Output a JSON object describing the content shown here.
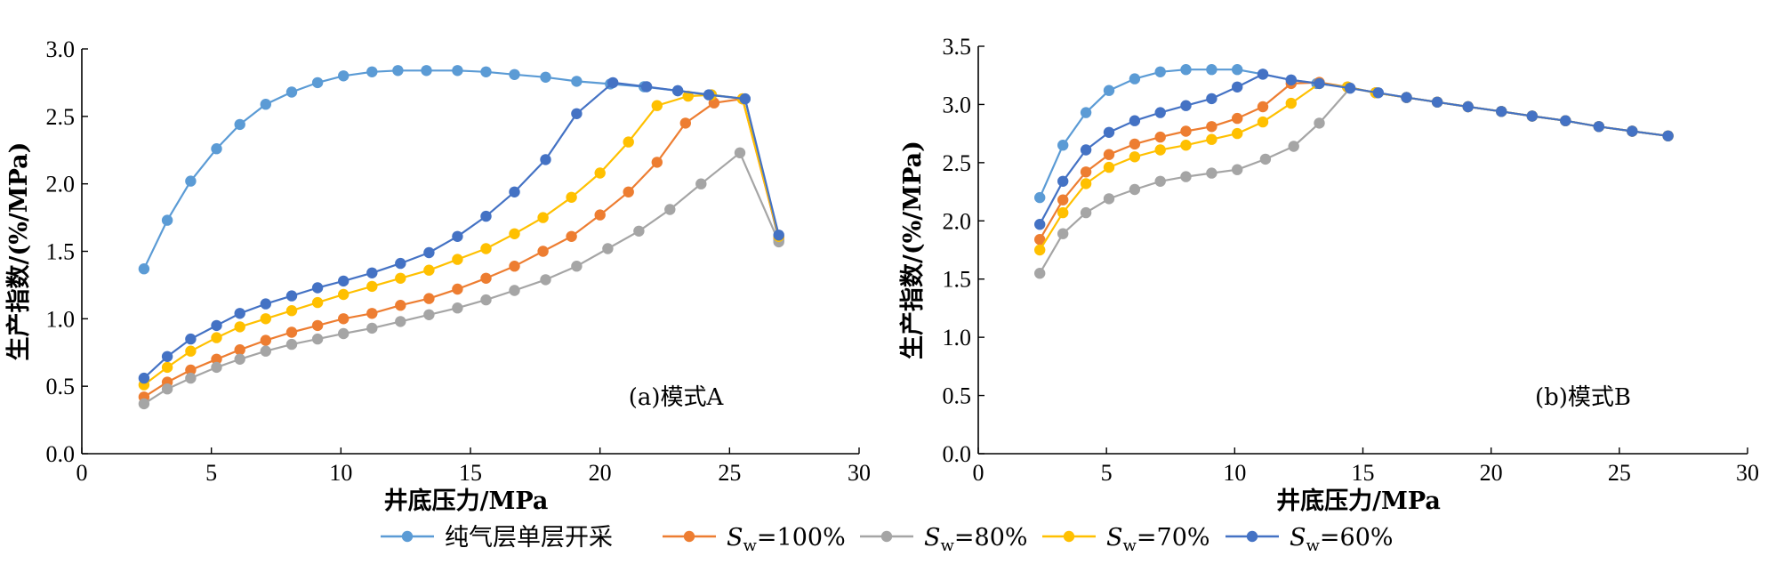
{
  "chart_data": [
    {
      "type": "line",
      "panel_label": "(a)模式A",
      "xlabel": "井底压力/MPa",
      "ylabel": "生产指数/(%/MPa)",
      "xlim": [
        0,
        30
      ],
      "ylim": [
        0,
        3.0
      ],
      "xticks": [
        "0",
        "5",
        "10",
        "15",
        "20",
        "25",
        "30"
      ],
      "yticks": [
        "0.0",
        "0.5",
        "1.0",
        "1.5",
        "2.0",
        "2.5",
        "3.0"
      ],
      "series": [
        {
          "name": "纯气层单层开采",
          "color": "#5b9bd5",
          "x": [
            2.4,
            3.3,
            4.2,
            5.2,
            6.1,
            7.1,
            8.1,
            9.1,
            10.1,
            11.2,
            12.2,
            13.3,
            14.5,
            15.6,
            16.7,
            17.9,
            19.1,
            20.4,
            21.7,
            23.0,
            24.3,
            25.6,
            26.9
          ],
          "y": [
            1.37,
            1.73,
            2.02,
            2.26,
            2.44,
            2.59,
            2.68,
            2.75,
            2.8,
            2.83,
            2.84,
            2.84,
            2.84,
            2.83,
            2.81,
            2.79,
            2.76,
            2.74,
            2.72,
            2.69,
            2.66,
            2.63,
            1.58
          ]
        },
        {
          "name": "Sw=100%",
          "color": "#ed7d31",
          "x": [
            2.4,
            3.3,
            4.2,
            5.2,
            6.1,
            7.1,
            8.1,
            9.1,
            10.1,
            11.2,
            12.3,
            13.4,
            14.5,
            15.6,
            16.7,
            17.8,
            18.9,
            20.0,
            21.1,
            22.2,
            23.3,
            24.4,
            25.5,
            26.9
          ],
          "y": [
            0.42,
            0.53,
            0.62,
            0.7,
            0.77,
            0.84,
            0.9,
            0.95,
            1.0,
            1.04,
            1.1,
            1.15,
            1.22,
            1.3,
            1.39,
            1.5,
            1.61,
            1.77,
            1.94,
            2.16,
            2.45,
            2.6,
            2.63,
            1.6
          ]
        },
        {
          "name": "Sw=80%",
          "color": "#a5a5a5",
          "x": [
            2.4,
            3.3,
            4.2,
            5.2,
            6.1,
            7.1,
            8.1,
            9.1,
            10.1,
            11.2,
            12.3,
            13.4,
            14.5,
            15.6,
            16.7,
            17.9,
            19.1,
            20.3,
            21.5,
            22.7,
            23.9,
            25.4,
            26.9
          ],
          "y": [
            0.37,
            0.48,
            0.56,
            0.64,
            0.7,
            0.76,
            0.81,
            0.85,
            0.89,
            0.93,
            0.98,
            1.03,
            1.08,
            1.14,
            1.21,
            1.29,
            1.39,
            1.52,
            1.65,
            1.81,
            2.0,
            2.23,
            1.57
          ]
        },
        {
          "name": "Sw=70%",
          "color": "#ffc000",
          "x": [
            2.4,
            3.3,
            4.2,
            5.2,
            6.1,
            7.1,
            8.1,
            9.1,
            10.1,
            11.2,
            12.3,
            13.4,
            14.5,
            15.6,
            16.7,
            17.8,
            18.9,
            20.0,
            21.1,
            22.2,
            23.4,
            24.3,
            25.5,
            26.9
          ],
          "y": [
            0.51,
            0.64,
            0.76,
            0.86,
            0.94,
            1.0,
            1.06,
            1.12,
            1.18,
            1.24,
            1.3,
            1.36,
            1.44,
            1.52,
            1.63,
            1.75,
            1.9,
            2.08,
            2.31,
            2.58,
            2.65,
            2.66,
            2.63,
            1.61
          ]
        },
        {
          "name": "Sw=60%",
          "color": "#4472c4",
          "x": [
            2.4,
            3.3,
            4.2,
            5.2,
            6.1,
            7.1,
            8.1,
            9.1,
            10.1,
            11.2,
            12.3,
            13.4,
            14.5,
            15.6,
            16.7,
            17.9,
            19.1,
            20.5,
            21.8,
            23.0,
            24.2,
            25.6,
            26.9
          ],
          "y": [
            0.56,
            0.72,
            0.85,
            0.95,
            1.04,
            1.11,
            1.17,
            1.23,
            1.28,
            1.34,
            1.41,
            1.49,
            1.61,
            1.76,
            1.94,
            2.18,
            2.52,
            2.75,
            2.72,
            2.69,
            2.66,
            2.63,
            1.62
          ]
        }
      ]
    },
    {
      "type": "line",
      "panel_label": "(b)模式B",
      "xlabel": "井底压力/MPa",
      "ylabel": "生产指数/(%/MPa)",
      "xlim": [
        0,
        30
      ],
      "ylim": [
        0,
        3.5
      ],
      "xticks": [
        "0",
        "5",
        "10",
        "15",
        "20",
        "25",
        "30"
      ],
      "yticks": [
        "0.0",
        "0.5",
        "1.0",
        "1.5",
        "2.0",
        "2.5",
        "3.0",
        "3.5"
      ],
      "series": [
        {
          "name": "纯气层单层开采",
          "color": "#5b9bd5",
          "x": [
            2.4,
            3.3,
            4.2,
            5.1,
            6.1,
            7.1,
            8.1,
            9.1,
            10.1,
            11.1,
            12.2,
            13.2,
            14.4,
            15.5,
            16.7,
            17.9,
            19.1,
            20.4,
            21.6,
            22.9,
            24.2,
            25.5,
            26.9
          ],
          "y": [
            2.2,
            2.65,
            2.93,
            3.12,
            3.22,
            3.28,
            3.3,
            3.3,
            3.3,
            3.26,
            3.21,
            3.18,
            3.15,
            3.1,
            3.06,
            3.02,
            2.98,
            2.94,
            2.9,
            2.86,
            2.81,
            2.77,
            2.73
          ]
        },
        {
          "name": "Sw=100%",
          "color": "#ed7d31",
          "x": [
            2.4,
            3.3,
            4.2,
            5.1,
            6.1,
            7.1,
            8.1,
            9.1,
            10.1,
            11.1,
            12.2,
            13.3,
            14.4,
            15.5,
            16.7,
            17.9,
            19.1,
            20.4,
            21.6,
            22.9,
            24.2,
            25.5,
            26.9
          ],
          "y": [
            1.84,
            2.18,
            2.42,
            2.57,
            2.66,
            2.72,
            2.77,
            2.81,
            2.88,
            2.98,
            3.18,
            3.19,
            3.15,
            3.1,
            3.06,
            3.02,
            2.98,
            2.94,
            2.9,
            2.86,
            2.81,
            2.77,
            2.73
          ]
        },
        {
          "name": "Sw=80%",
          "color": "#a5a5a5",
          "x": [
            2.4,
            3.3,
            4.2,
            5.1,
            6.1,
            7.1,
            8.1,
            9.1,
            10.1,
            11.2,
            12.3,
            13.3,
            14.5,
            15.5,
            16.7,
            17.9,
            19.1,
            20.4,
            21.6,
            22.9,
            24.2,
            25.5,
            26.9
          ],
          "y": [
            1.55,
            1.89,
            2.07,
            2.19,
            2.27,
            2.34,
            2.38,
            2.41,
            2.44,
            2.53,
            2.64,
            2.84,
            3.14,
            3.1,
            3.06,
            3.02,
            2.98,
            2.94,
            2.9,
            2.86,
            2.81,
            2.77,
            2.73
          ]
        },
        {
          "name": "Sw=70%",
          "color": "#ffc000",
          "x": [
            2.4,
            3.3,
            4.2,
            5.1,
            6.1,
            7.1,
            8.1,
            9.1,
            10.1,
            11.1,
            12.2,
            13.3,
            14.4,
            15.5,
            16.7,
            17.9,
            19.1,
            20.4,
            21.6,
            22.9,
            24.2,
            25.5,
            26.9
          ],
          "y": [
            1.75,
            2.07,
            2.32,
            2.46,
            2.55,
            2.61,
            2.65,
            2.7,
            2.75,
            2.85,
            3.01,
            3.18,
            3.15,
            3.1,
            3.06,
            3.02,
            2.98,
            2.94,
            2.9,
            2.86,
            2.81,
            2.77,
            2.73
          ]
        },
        {
          "name": "Sw=60%",
          "color": "#4472c4",
          "x": [
            2.4,
            3.3,
            4.2,
            5.1,
            6.1,
            7.1,
            8.1,
            9.1,
            10.1,
            11.1,
            12.2,
            13.3,
            14.5,
            15.6,
            16.7,
            17.9,
            19.1,
            20.4,
            21.6,
            22.9,
            24.2,
            25.5,
            26.9
          ],
          "y": [
            1.97,
            2.34,
            2.61,
            2.76,
            2.86,
            2.93,
            2.99,
            3.05,
            3.15,
            3.26,
            3.21,
            3.18,
            3.14,
            3.1,
            3.06,
            3.02,
            2.98,
            2.94,
            2.9,
            2.86,
            2.81,
            2.77,
            2.73
          ]
        }
      ]
    }
  ],
  "legend": {
    "placement": "bottom",
    "items": [
      {
        "label": "纯气层单层开采",
        "color": "#5b9bd5"
      },
      {
        "symbol": "S",
        "sub": "w",
        "label": "=100%",
        "color": "#ed7d31"
      },
      {
        "symbol": "S",
        "sub": "w",
        "label": "=80%",
        "color": "#a5a5a5"
      },
      {
        "symbol": "S",
        "sub": "w",
        "label": "=70%",
        "color": "#ffc000"
      },
      {
        "symbol": "S",
        "sub": "w",
        "label": "=60%",
        "color": "#4472c4"
      }
    ]
  }
}
